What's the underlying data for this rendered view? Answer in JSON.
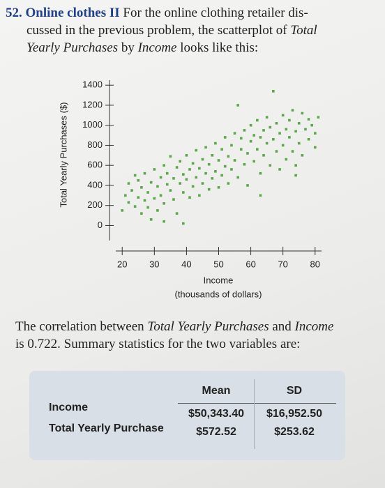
{
  "problem": {
    "number": "52.",
    "heading": "Online clothes II",
    "line1": "For the online clothing retailer dis-",
    "line2": "cussed in the previous problem, the scatterplot of",
    "line2_italic": "Total",
    "line3_italic1": "Yearly Purchases",
    "line3_mid": "by",
    "line3_italic2": "Income",
    "line3_end": "looks like this:"
  },
  "chart_data": {
    "type": "scatter",
    "y_label": "Total Yearly Purchases ($)",
    "x_label": "Income",
    "x_sublabel": "(thousands of dollars)",
    "color": "#5aa84a",
    "xlim": [
      18,
      82
    ],
    "xticks": [
      20,
      30,
      40,
      50,
      60,
      70,
      80
    ],
    "ylim": [
      -150,
      1450
    ],
    "yticks": [
      0,
      200,
      400,
      600,
      800,
      1000,
      1200,
      1400
    ],
    "x": [
      20,
      21,
      22,
      22,
      23,
      24,
      24,
      25,
      25,
      26,
      26,
      27,
      27,
      28,
      28,
      29,
      29,
      30,
      30,
      31,
      31,
      32,
      32,
      33,
      33,
      34,
      34,
      35,
      35,
      36,
      36,
      37,
      37,
      38,
      38,
      39,
      39,
      40,
      40,
      41,
      41,
      42,
      42,
      43,
      43,
      44,
      44,
      45,
      45,
      46,
      46,
      47,
      47,
      48,
      48,
      49,
      49,
      50,
      50,
      51,
      51,
      52,
      52,
      53,
      53,
      54,
      54,
      55,
      55,
      56,
      56,
      57,
      57,
      58,
      58,
      59,
      59,
      60,
      60,
      61,
      61,
      62,
      62,
      63,
      63,
      64,
      64,
      65,
      65,
      66,
      66,
      67,
      67,
      68,
      68,
      69,
      69,
      70,
      70,
      71,
      71,
      72,
      72,
      73,
      73,
      74,
      74,
      75,
      75,
      76,
      76,
      77,
      78,
      78,
      79,
      80,
      80,
      81,
      74,
      63,
      33,
      39
    ],
    "values": [
      150,
      300,
      420,
      230,
      350,
      500,
      190,
      280,
      450,
      120,
      380,
      250,
      520,
      330,
      180,
      430,
      60,
      270,
      560,
      390,
      150,
      480,
      300,
      600,
      220,
      410,
      520,
      350,
      690,
      260,
      470,
      580,
      120,
      420,
      640,
      330,
      510,
      460,
      700,
      280,
      560,
      620,
      390,
      480,
      750,
      300,
      570,
      660,
      420,
      520,
      780,
      360,
      610,
      700,
      470,
      820,
      540,
      380,
      650,
      760,
      500,
      880,
      590,
      690,
      420,
      800,
      560,
      920,
      650,
      1200,
      480,
      760,
      870,
      610,
      950,
      720,
      400,
      840,
      1000,
      640,
      900,
      760,
      1050,
      520,
      880,
      950,
      700,
      820,
      1080,
      600,
      980,
      1340,
      860,
      740,
      1020,
      920,
      560,
      1100,
      800,
      960,
      660,
      1050,
      880,
      740,
      1150,
      940,
      600,
      1020,
      820,
      1120,
      700,
      960,
      1060,
      860,
      1000,
      920,
      780,
      1080,
      500,
      300,
      40,
      20
    ]
  },
  "correlation": {
    "line1a": "The correlation between",
    "line1b": "Total Yearly Purchases",
    "line1c": "and",
    "line1d": "Income",
    "line2": "is 0.722. Summary statistics for the two variables are:"
  },
  "table": {
    "header": [
      "Mean",
      "SD"
    ],
    "rows": [
      [
        "Income",
        "$50,343.40",
        "$16,952.50"
      ],
      [
        "Total Yearly Purchase",
        "$572.52",
        "$253.62"
      ]
    ]
  }
}
